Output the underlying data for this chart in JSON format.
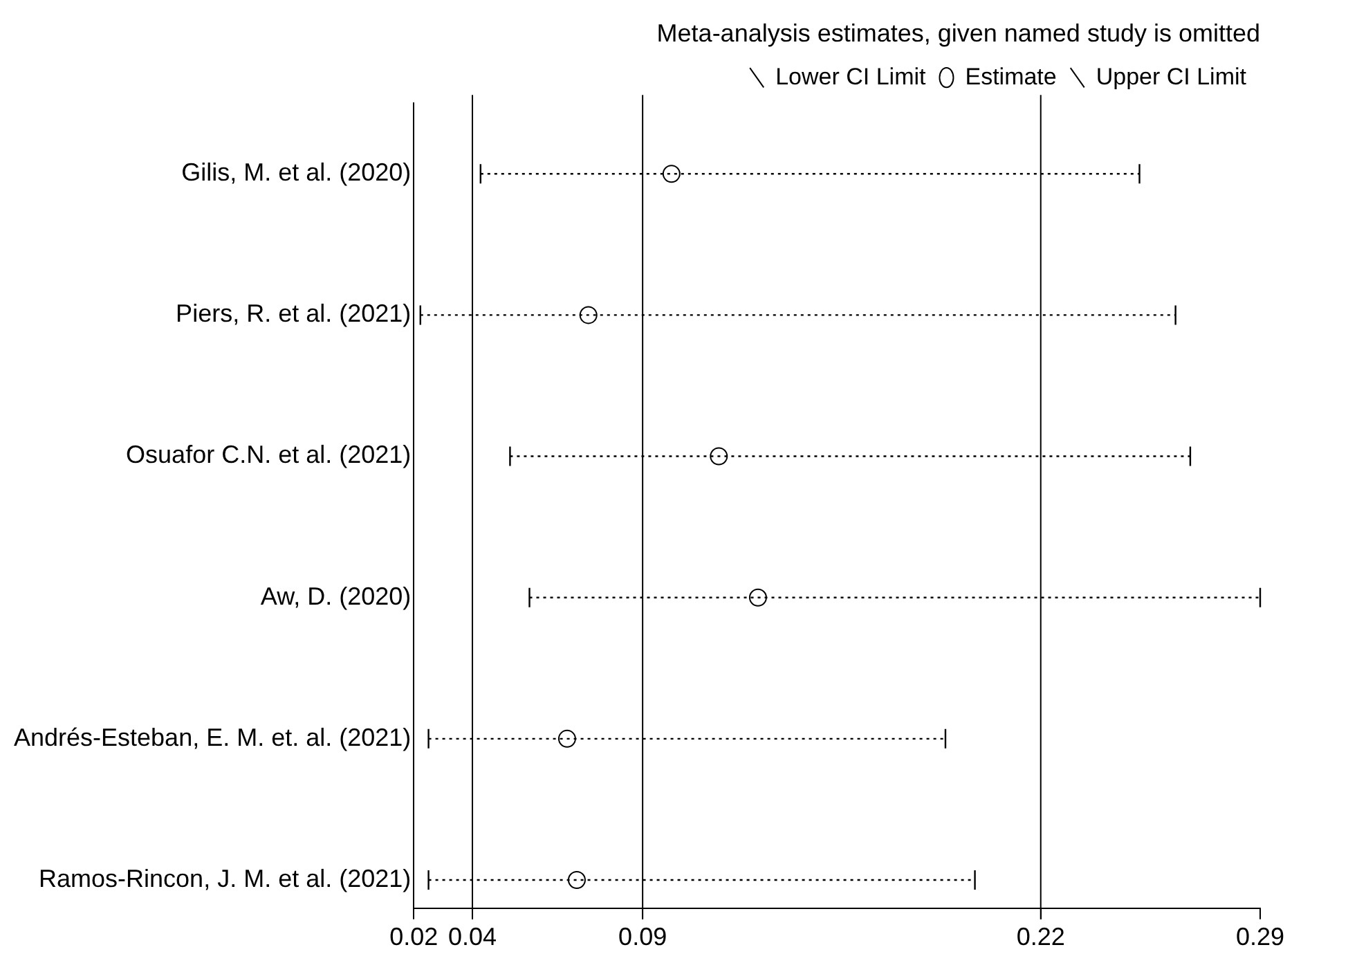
{
  "chart_data": {
    "type": "scatter",
    "orientation": "horizontal",
    "title": "Meta-analysis estimates, given named study is omitted",
    "categories": [
      "Gilis, M. et al. (2020)",
      "Piers, R. et al. (2021)",
      "Osuafor C.N. et al. (2021)",
      "Aw, D. (2020)",
      "Andrés-Esteban, E. M. et. al. (2021)",
      "Ramos-Rincon, J. M. et al. (2021)"
    ],
    "series": [
      {
        "name": "Estimate",
        "color": "#000000",
        "marker": "circle",
        "values": [
          0.1022,
          0.0757,
          0.1173,
          0.1298,
          0.0689,
          0.072
        ],
        "errors": [
          [
            0.0413,
            0.2515
          ],
          [
            0.0221,
            0.263
          ],
          [
            0.0507,
            0.2677
          ],
          [
            0.0569,
            0.29
          ],
          [
            0.0247,
            0.1896
          ],
          [
            0.0247,
            0.199
          ]
        ]
      }
    ],
    "annotations": [
      "Lower CI Limit",
      "Upper CI Limit"
    ],
    "xlim": [
      0.02,
      0.29
    ],
    "xticks": [
      0.02,
      {
        "value": 0.0387,
        "label": "0.04"
      },
      {
        "value": 0.093,
        "label": "0.09"
      },
      0.22,
      0.29
    ],
    "ref_lines": [
      {
        "axis": "x",
        "value": 0.0387
      },
      {
        "axis": "x",
        "value": 0.093
      },
      {
        "axis": "x",
        "value": 0.22
      }
    ],
    "line_style": "dotted",
    "legend": "top right"
  }
}
